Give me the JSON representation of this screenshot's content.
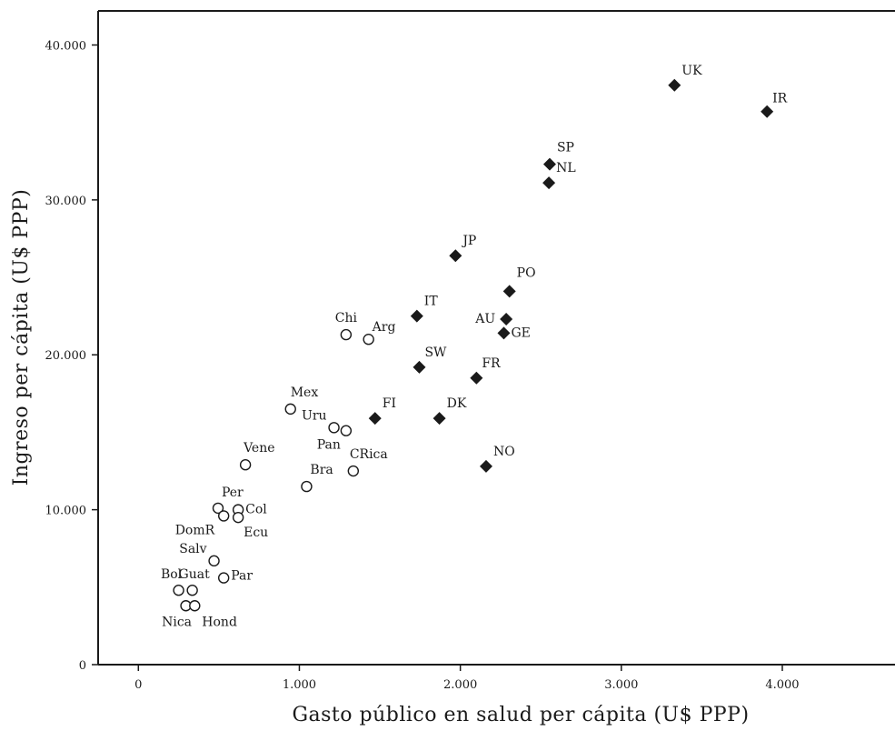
{
  "chart_data": {
    "type": "scatter",
    "xlabel": "Gasto público en salud per cápita (U$ PPP)",
    "ylabel": "Ingreso per cápita (U$ PPP)",
    "xlim": [
      -250,
      4700
    ],
    "ylim": [
      0,
      42200
    ],
    "xticks": [
      0,
      1000,
      2000,
      3000,
      4000
    ],
    "xtick_labels": [
      "0",
      "1.000",
      "2.000",
      "3.000",
      "4.000"
    ],
    "yticks": [
      0,
      10000,
      20000,
      30000,
      40000
    ],
    "ytick_labels": [
      "0",
      "10.000",
      "20.000",
      "30.000",
      "40.000"
    ],
    "grid": false,
    "series": [
      {
        "marker": "circle-open",
        "color": "#1a1a1a",
        "points": [
          {
            "label": "Chi",
            "x": 1290,
            "y": 21300
          },
          {
            "label": "Arg",
            "x": 1430,
            "y": 21000
          },
          {
            "label": "Mex",
            "x": 945,
            "y": 16500
          },
          {
            "label": "Uru",
            "x": 1215,
            "y": 15300
          },
          {
            "label": "Pan",
            "x": 1290,
            "y": 15100
          },
          {
            "label": "CRica",
            "x": 1335,
            "y": 12500
          },
          {
            "label": "Bra",
            "x": 1045,
            "y": 11500
          },
          {
            "label": "Vene",
            "x": 665,
            "y": 12900
          },
          {
            "label": "Per",
            "x": 495,
            "y": 10100
          },
          {
            "label": "Col",
            "x": 620,
            "y": 10000
          },
          {
            "label": "DomR",
            "x": 530,
            "y": 9600
          },
          {
            "label": "Ecu",
            "x": 620,
            "y": 9500
          },
          {
            "label": "Salv",
            "x": 470,
            "y": 6700
          },
          {
            "label": "Par",
            "x": 530,
            "y": 5600
          },
          {
            "label": "Bol",
            "x": 250,
            "y": 4800
          },
          {
            "label": "Guat",
            "x": 335,
            "y": 4800
          },
          {
            "label": "Nica",
            "x": 295,
            "y": 3800
          },
          {
            "label": "Hond",
            "x": 350,
            "y": 3800
          }
        ]
      },
      {
        "marker": "diamond-filled",
        "color": "#1a1a1a",
        "points": [
          {
            "label": "UK",
            "x": 3330,
            "y": 37400
          },
          {
            "label": "IR",
            "x": 3905,
            "y": 35700
          },
          {
            "label": "SP",
            "x": 2555,
            "y": 32300
          },
          {
            "label": "NL",
            "x": 2550,
            "y": 31100
          },
          {
            "label": "JP",
            "x": 1970,
            "y": 26400
          },
          {
            "label": "PO",
            "x": 2305,
            "y": 24100
          },
          {
            "label": "IT",
            "x": 1730,
            "y": 22500
          },
          {
            "label": "AU",
            "x": 2285,
            "y": 22300
          },
          {
            "label": "GE",
            "x": 2270,
            "y": 21400
          },
          {
            "label": "SW",
            "x": 1745,
            "y": 19200
          },
          {
            "label": "FR",
            "x": 2100,
            "y": 18500
          },
          {
            "label": "FI",
            "x": 1470,
            "y": 15900
          },
          {
            "label": "DK",
            "x": 1870,
            "y": 15900
          },
          {
            "label": "NO",
            "x": 2160,
            "y": 12800
          }
        ]
      }
    ]
  }
}
